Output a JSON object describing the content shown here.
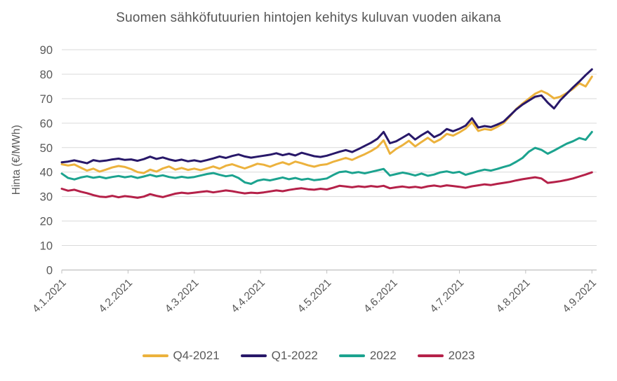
{
  "chart_data": {
    "type": "line",
    "title": "Suomen sähköfutuurien hintojen kehitys kuluvan vuoden aikana",
    "xlabel": "",
    "ylabel": "Hinta (€/MWh)",
    "ylim": [
      0,
      90
    ],
    "xlim": [
      0,
      169.5
    ],
    "y_ticks": [
      0,
      10,
      20,
      30,
      40,
      50,
      60,
      70,
      80,
      90
    ],
    "x_tick_labels": [
      "4.1.2021",
      "4.2.2021",
      "4.3.2021",
      "4.4.2021",
      "4.5.2021",
      "4.6.2021",
      "4.7.2021",
      "4.8.2021",
      "4.9.2021"
    ],
    "x_tick_days": [
      0,
      21,
      42,
      63,
      84,
      105,
      126,
      147,
      168
    ],
    "x_day_step": 2,
    "grid": true,
    "legend_position": "bottom",
    "text_color": "#595959",
    "title_color": "#565656",
    "grid_color": "#D9D9D9",
    "axis_color": "#BFBFBF",
    "series": [
      {
        "name": "Q4-2021",
        "color": "#ECB23D",
        "values": [
          43.2,
          42.7,
          43.1,
          41.8,
          40.6,
          41.4,
          40.2,
          41.0,
          41.9,
          42.5,
          42.1,
          41.2,
          40.0,
          39.6,
          41.0,
          40.2,
          41.5,
          42.3,
          41.0,
          41.7,
          40.9,
          41.4,
          40.8,
          41.5,
          42.3,
          41.4,
          42.6,
          43.2,
          42.3,
          41.5,
          42.4,
          43.4,
          43.0,
          42.2,
          43.2,
          44.0,
          43.1,
          44.3,
          43.6,
          42.8,
          42.2,
          42.9,
          43.2,
          44.2,
          45.0,
          45.8,
          45.0,
          46.2,
          47.3,
          48.6,
          50.2,
          53.0,
          47.5,
          49.5,
          51.0,
          52.8,
          50.5,
          52.3,
          54.0,
          52.1,
          53.4,
          55.6,
          54.9,
          56.2,
          57.8,
          60.4,
          56.8,
          57.6,
          57.2,
          58.5,
          60.0,
          62.8,
          65.8,
          68.0,
          70.0,
          72.0,
          73.2,
          72.0,
          70.1,
          70.8,
          72.3,
          74.0,
          76.3,
          75.0,
          79.0
        ]
      },
      {
        "name": "Q1-2022",
        "color": "#281869",
        "values": [
          44.0,
          44.3,
          44.8,
          44.2,
          43.6,
          44.9,
          44.4,
          44.7,
          45.2,
          45.5,
          45.0,
          45.2,
          44.6,
          45.3,
          46.3,
          45.4,
          46.0,
          45.2,
          44.6,
          45.1,
          44.4,
          44.8,
          44.3,
          44.9,
          45.6,
          46.4,
          45.8,
          46.6,
          47.2,
          46.4,
          45.9,
          46.3,
          46.7,
          47.1,
          47.7,
          46.9,
          47.5,
          46.8,
          47.9,
          47.2,
          46.5,
          46.2,
          46.7,
          47.5,
          48.3,
          49.0,
          48.2,
          49.4,
          50.7,
          52.0,
          53.6,
          56.4,
          51.8,
          52.6,
          54.1,
          55.6,
          53.3,
          55.1,
          56.6,
          54.3,
          55.5,
          57.6,
          56.7,
          57.7,
          59.0,
          62.0,
          58.2,
          58.8,
          58.4,
          59.4,
          60.6,
          63.1,
          65.6,
          67.6,
          69.2,
          70.8,
          71.3,
          68.4,
          66.0,
          69.4,
          72.0,
          74.6,
          77.0,
          79.6,
          82.0
        ]
      },
      {
        "name": "2022",
        "color": "#1CA38F",
        "values": [
          39.4,
          37.6,
          37.0,
          37.8,
          38.3,
          37.7,
          38.1,
          37.5,
          38.0,
          38.4,
          37.9,
          38.3,
          37.6,
          38.2,
          38.9,
          38.2,
          38.7,
          38.0,
          37.6,
          38.1,
          37.7,
          38.0,
          38.6,
          39.2,
          39.6,
          38.9,
          38.3,
          38.7,
          37.6,
          35.8,
          35.2,
          36.5,
          37.0,
          36.6,
          37.2,
          37.8,
          37.1,
          37.6,
          36.9,
          37.3,
          36.7,
          37.0,
          37.4,
          38.8,
          40.0,
          40.3,
          39.6,
          40.0,
          39.5,
          40.1,
          40.7,
          41.3,
          38.6,
          39.2,
          39.8,
          39.3,
          38.6,
          39.4,
          38.5,
          39.0,
          39.9,
          40.3,
          39.7,
          40.1,
          38.9,
          39.6,
          40.4,
          41.0,
          40.6,
          41.3,
          42.1,
          42.8,
          44.2,
          45.8,
          48.3,
          49.9,
          49.1,
          47.5,
          48.8,
          50.2,
          51.6,
          52.6,
          53.9,
          53.2,
          56.4
        ]
      },
      {
        "name": "2023",
        "color": "#B52149",
        "values": [
          33.2,
          32.4,
          32.8,
          32.0,
          31.4,
          30.6,
          30.0,
          29.8,
          30.3,
          29.7,
          30.2,
          29.9,
          29.5,
          30.0,
          31.0,
          30.3,
          29.8,
          30.5,
          31.2,
          31.6,
          31.3,
          31.6,
          31.9,
          32.2,
          31.7,
          32.1,
          32.5,
          32.2,
          31.7,
          31.3,
          31.6,
          31.4,
          31.7,
          32.1,
          32.5,
          32.2,
          32.7,
          33.1,
          33.4,
          33.0,
          32.8,
          33.2,
          32.9,
          33.6,
          34.4,
          34.1,
          33.8,
          34.2,
          33.9,
          34.3,
          34.0,
          34.4,
          33.4,
          33.8,
          34.1,
          33.7,
          34.0,
          33.6,
          34.2,
          34.5,
          34.1,
          34.6,
          34.3,
          34.0,
          33.6,
          34.2,
          34.6,
          35.0,
          34.7,
          35.2,
          35.6,
          36.0,
          36.6,
          37.1,
          37.5,
          37.9,
          37.4,
          35.6,
          35.9,
          36.3,
          36.8,
          37.4,
          38.2,
          39.0,
          39.9
        ]
      }
    ]
  }
}
